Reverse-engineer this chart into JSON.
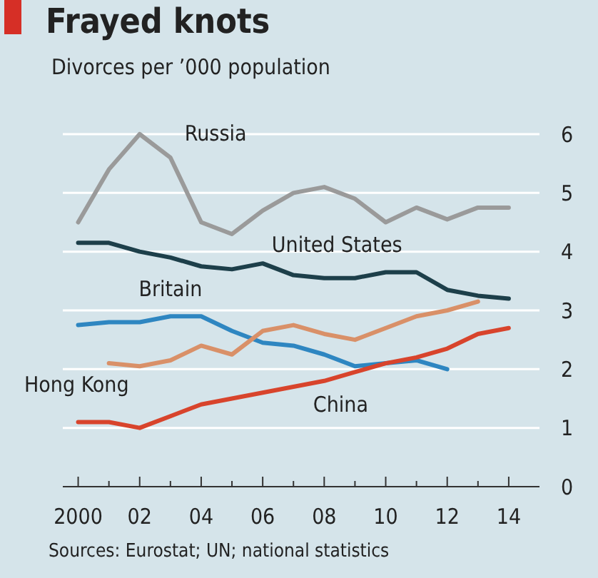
{
  "chart_data": {
    "type": "line",
    "title": "Frayed knots",
    "subtitle": "Divorces per ’000 population",
    "x": [
      2000,
      2001,
      2002,
      2003,
      2004,
      2005,
      2006,
      2007,
      2008,
      2009,
      2010,
      2011,
      2012,
      2013,
      2014
    ],
    "series": [
      {
        "name": "Russia",
        "color": "#9a9a9a",
        "values": [
          4.5,
          5.4,
          6.0,
          5.6,
          4.5,
          4.3,
          4.7,
          5.0,
          5.1,
          4.9,
          4.5,
          4.75,
          4.55,
          4.75,
          4.75
        ]
      },
      {
        "name": "United States",
        "color": "#1d3f4a",
        "values": [
          4.15,
          4.15,
          4.0,
          3.9,
          3.75,
          3.7,
          3.8,
          3.6,
          3.55,
          3.55,
          3.65,
          3.65,
          3.35,
          3.25,
          3.2
        ]
      },
      {
        "name": "Britain",
        "color": "#2e86c1",
        "values": [
          2.75,
          2.8,
          2.8,
          2.9,
          2.9,
          2.65,
          2.45,
          2.4,
          2.25,
          2.05,
          2.1,
          2.15,
          2.0,
          null,
          null
        ]
      },
      {
        "name": "Hong Kong",
        "color": "#d99068",
        "values": [
          null,
          2.1,
          2.05,
          2.15,
          2.4,
          2.25,
          2.65,
          2.75,
          2.6,
          2.5,
          2.7,
          2.9,
          3.0,
          3.15,
          null
        ]
      },
      {
        "name": "China",
        "color": "#d8442c",
        "values": [
          1.1,
          1.1,
          1.0,
          1.2,
          1.4,
          1.5,
          1.6,
          1.7,
          1.8,
          1.95,
          2.1,
          2.2,
          2.35,
          2.6,
          2.7
        ]
      }
    ],
    "xlim": [
      1999.5,
      2015
    ],
    "xticks": [
      {
        "value": 2000,
        "label": "2000"
      },
      {
        "value": 2001,
        "label": null
      },
      {
        "value": 2002,
        "label": "02"
      },
      {
        "value": 2003,
        "label": null
      },
      {
        "value": 2004,
        "label": "04"
      },
      {
        "value": 2005,
        "label": null
      },
      {
        "value": 2006,
        "label": "06"
      },
      {
        "value": 2007,
        "label": null
      },
      {
        "value": 2008,
        "label": "08"
      },
      {
        "value": 2009,
        "label": null
      },
      {
        "value": 2010,
        "label": "10"
      },
      {
        "value": 2011,
        "label": null
      },
      {
        "value": 2012,
        "label": "12"
      },
      {
        "value": 2013,
        "label": null
      },
      {
        "value": 2014,
        "label": "14"
      }
    ],
    "ylim": [
      0,
      6
    ],
    "yticks": [
      0,
      1,
      2,
      3,
      4,
      5,
      6
    ],
    "grid": "y",
    "line_style": "solid",
    "marker": "none",
    "annotations": [
      "Sources: Eurostat; UN; national statistics"
    ]
  }
}
